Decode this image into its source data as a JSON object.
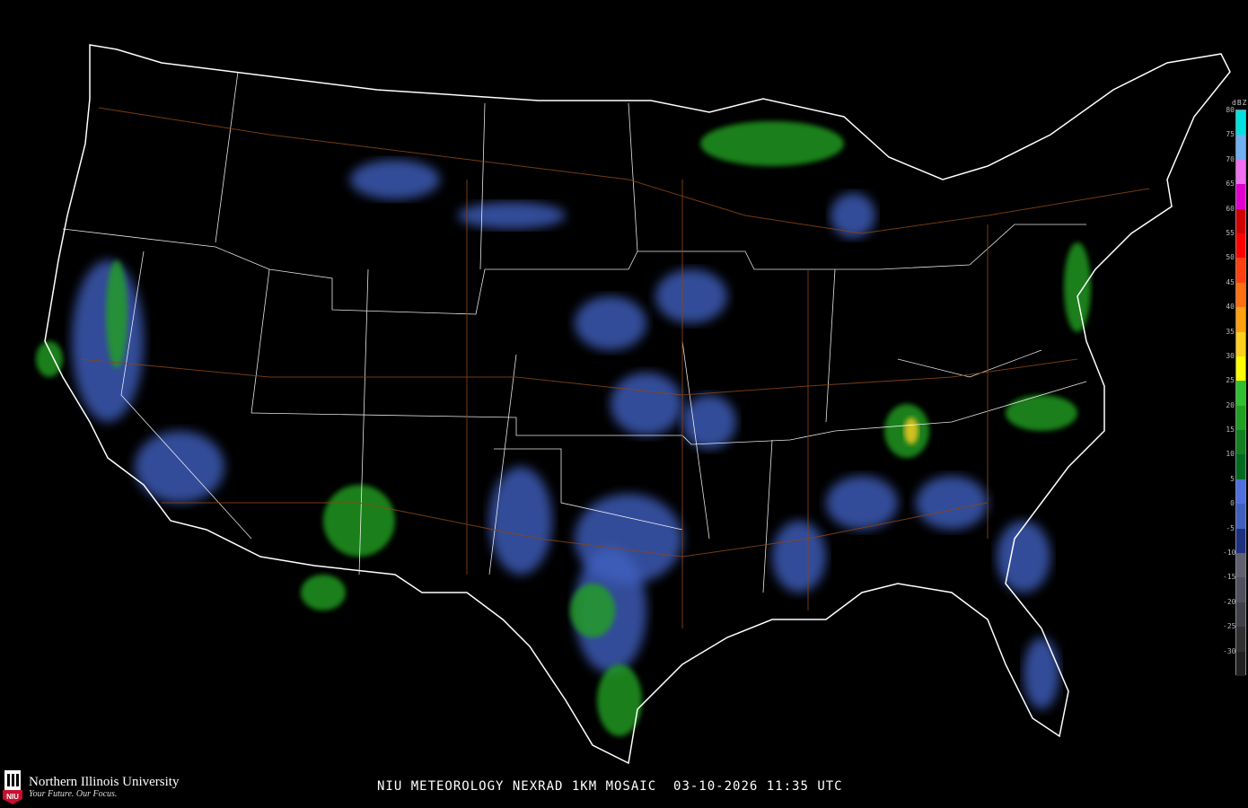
{
  "caption": {
    "title": "NIU METEOROLOGY NEXRAD 1KM MOSAIC",
    "date": "03-10-2026",
    "time": "11:35 UTC"
  },
  "logo": {
    "name": "Northern Illinois University",
    "tagline": "Your Future. Our Focus.",
    "mark_text": "NIU",
    "brand_color": "#c8102e"
  },
  "legend": {
    "unit": "dBZ",
    "levels": [
      {
        "value": "80",
        "color": "#00e0e0"
      },
      {
        "value": "75",
        "color": "#70b0f0"
      },
      {
        "value": "70",
        "color": "#f070f0"
      },
      {
        "value": "65",
        "color": "#e000d0"
      },
      {
        "value": "60",
        "color": "#d00000"
      },
      {
        "value": "55",
        "color": "#ff0000"
      },
      {
        "value": "50",
        "color": "#ff4010"
      },
      {
        "value": "45",
        "color": "#ff7010"
      },
      {
        "value": "40",
        "color": "#ffa010"
      },
      {
        "value": "35",
        "color": "#ffd020"
      },
      {
        "value": "30",
        "color": "#ffff00"
      },
      {
        "value": "25",
        "color": "#30c030"
      },
      {
        "value": "20",
        "color": "#20a020"
      },
      {
        "value": "15",
        "color": "#108020"
      },
      {
        "value": "10",
        "color": "#006a20"
      },
      {
        "value": "5",
        "color": "#5070e0"
      },
      {
        "value": "0",
        "color": "#4060c0"
      },
      {
        "value": "-5",
        "color": "#203080"
      },
      {
        "value": "-10",
        "color": "#606070"
      },
      {
        "value": "-15",
        "color": "#505060"
      },
      {
        "value": "-20",
        "color": "#404048"
      },
      {
        "value": "-25",
        "color": "#303030"
      },
      {
        "value": "-30",
        "color": "#202020"
      }
    ]
  },
  "map": {
    "background": "#000000",
    "border_color": "#ffffff",
    "highway_color": "#8b4513"
  }
}
